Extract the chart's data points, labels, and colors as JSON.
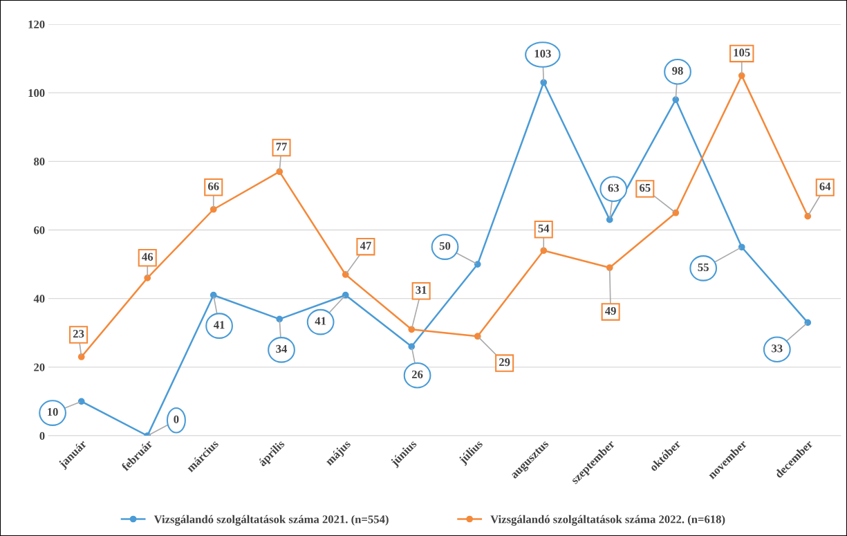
{
  "chart_data": {
    "type": "line",
    "categories": [
      "január",
      "február",
      "március",
      "április",
      "május",
      "június",
      "július",
      "augusztus",
      "szeptember",
      "október",
      "november",
      "december"
    ],
    "series": [
      {
        "name": "Vizsgálandó szolgáltatások száma 2021. (n=554)",
        "color": "#4a9bd6",
        "values": [
          10,
          0,
          41,
          34,
          41,
          26,
          50,
          103,
          63,
          98,
          55,
          33
        ]
      },
      {
        "name": "Vizsgálandó szolgáltatások száma 2022. (n=618)",
        "color": "#f4893a",
        "values": [
          23,
          46,
          66,
          77,
          47,
          31,
          29,
          54,
          49,
          65,
          105,
          64
        ]
      }
    ],
    "ylim": [
      0,
      120
    ],
    "yticks": [
      0,
      20,
      40,
      60,
      80,
      100,
      120
    ],
    "grid": "y",
    "legend": "bottom",
    "marker": "circle",
    "line_style": "solid",
    "data_labels": true
  }
}
